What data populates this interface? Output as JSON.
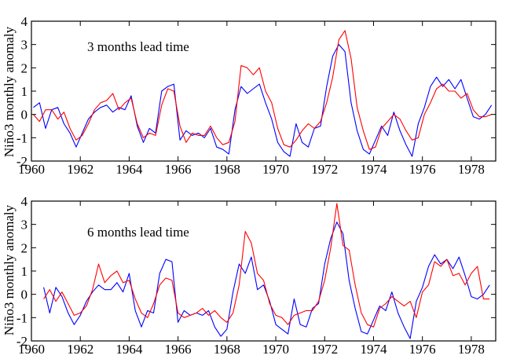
{
  "chart_data": [
    {
      "type": "line",
      "annotation": "3 months lead time",
      "ylabel": "Niño3 monthly anomaly",
      "xlim": [
        1960,
        1979
      ],
      "ylim": [
        -2,
        4
      ],
      "x_ticks": [
        1960,
        1962,
        1964,
        1966,
        1968,
        1970,
        1972,
        1974,
        1976,
        1978
      ],
      "y_ticks": [
        -2,
        -1,
        0,
        1,
        2,
        3,
        4
      ],
      "series": [
        {
          "color": "#0000ff",
          "x": [
            1960.08,
            1960.33,
            1960.58,
            1960.83,
            1961.08,
            1961.33,
            1961.58,
            1961.83,
            1962.08,
            1962.33,
            1962.58,
            1962.83,
            1963.08,
            1963.33,
            1963.58,
            1963.83,
            1964.08,
            1964.33,
            1964.58,
            1964.83,
            1965.08,
            1965.33,
            1965.58,
            1965.83,
            1966.08,
            1966.33,
            1966.58,
            1966.83,
            1967.08,
            1967.33,
            1967.58,
            1967.83,
            1968.08,
            1968.33,
            1968.58,
            1968.83,
            1969.08,
            1969.33,
            1969.58,
            1969.83,
            1970.08,
            1970.33,
            1970.58,
            1970.83,
            1971.08,
            1971.33,
            1971.58,
            1971.83,
            1972.08,
            1972.33,
            1972.58,
            1972.83,
            1973.08,
            1973.33,
            1973.58,
            1973.83,
            1974.08,
            1974.33,
            1974.58,
            1974.83,
            1975.08,
            1975.33,
            1975.58,
            1975.83,
            1976.08,
            1976.33,
            1976.58,
            1976.83,
            1977.08,
            1977.33,
            1977.58,
            1977.83,
            1978.08,
            1978.33,
            1978.58,
            1978.83
          ],
          "y": [
            0.3,
            0.5,
            -0.6,
            0.2,
            0.3,
            -0.4,
            -0.8,
            -1.4,
            -0.8,
            -0.2,
            0.1,
            0.3,
            0.4,
            0.1,
            0.3,
            0.2,
            0.8,
            -0.5,
            -1.2,
            -0.6,
            -0.8,
            1.0,
            1.2,
            1.3,
            -1.1,
            -0.7,
            -0.9,
            -0.8,
            -1.0,
            -0.6,
            -1.4,
            -1.5,
            -1.7,
            0.2,
            1.2,
            0.9,
            1.1,
            1.3,
            0.5,
            -0.2,
            -1.2,
            -1.6,
            -1.8,
            -0.4,
            -1.2,
            -1.4,
            -0.6,
            -0.5,
            1.2,
            2.5,
            3.0,
            2.7,
            0.5,
            -0.7,
            -1.5,
            -1.7,
            -1.1,
            -0.5,
            -0.9,
            0.1,
            -0.7,
            -1.3,
            -1.8,
            -0.4,
            0.3,
            1.2,
            1.6,
            1.2,
            1.5,
            1.1,
            1.5,
            0.7,
            -0.1,
            -0.2,
            0.0,
            0.4
          ]
        },
        {
          "color": "#ff0000",
          "x": [
            1960.08,
            1960.33,
            1960.58,
            1960.83,
            1961.08,
            1961.33,
            1961.58,
            1961.83,
            1962.08,
            1962.33,
            1962.58,
            1962.83,
            1963.08,
            1963.33,
            1963.58,
            1963.83,
            1964.08,
            1964.33,
            1964.58,
            1964.83,
            1965.08,
            1965.33,
            1965.58,
            1965.83,
            1966.08,
            1966.33,
            1966.58,
            1966.83,
            1967.08,
            1967.33,
            1967.58,
            1967.83,
            1968.08,
            1968.33,
            1968.58,
            1968.83,
            1969.08,
            1969.33,
            1969.58,
            1969.83,
            1970.08,
            1970.33,
            1970.58,
            1970.83,
            1971.08,
            1971.33,
            1971.58,
            1971.83,
            1972.08,
            1972.33,
            1972.58,
            1972.83,
            1973.08,
            1973.33,
            1973.58,
            1973.83,
            1974.08,
            1974.33,
            1974.58,
            1974.83,
            1975.08,
            1975.33,
            1975.58,
            1975.83,
            1976.08,
            1976.33,
            1976.58,
            1976.83,
            1977.08,
            1977.33,
            1977.58,
            1977.83,
            1978.08,
            1978.33,
            1978.58,
            1978.83
          ],
          "y": [
            0.0,
            -0.3,
            0.2,
            0.2,
            -0.2,
            0.1,
            -0.6,
            -1.1,
            -0.9,
            -0.4,
            0.2,
            0.5,
            0.6,
            0.9,
            0.2,
            0.5,
            0.7,
            -0.4,
            -1.0,
            -0.8,
            -0.9,
            0.4,
            1.1,
            1.0,
            -0.5,
            -1.2,
            -0.8,
            -0.9,
            -0.9,
            -0.5,
            -1.0,
            -1.3,
            -1.2,
            -0.3,
            2.1,
            2.0,
            1.7,
            2.0,
            1.0,
            0.5,
            -0.6,
            -1.3,
            -1.4,
            -1.1,
            -0.7,
            -0.4,
            -0.6,
            -0.3,
            0.5,
            1.6,
            3.2,
            3.6,
            2.4,
            0.3,
            -0.7,
            -1.5,
            -1.4,
            -0.6,
            -0.3,
            0.0,
            -0.2,
            -0.7,
            -1.1,
            -1.0,
            0.0,
            0.5,
            1.1,
            1.3,
            1.0,
            1.0,
            0.7,
            0.9,
            0.2,
            -0.1,
            -0.1,
            0.0
          ]
        }
      ]
    },
    {
      "type": "line",
      "annotation": "6 months lead time",
      "ylabel": "Niño3 monthly anomaly",
      "xlim": [
        1960,
        1979
      ],
      "ylim": [
        -2,
        4
      ],
      "x_ticks": [
        1960,
        1962,
        1964,
        1966,
        1968,
        1970,
        1972,
        1974,
        1976,
        1978
      ],
      "y_ticks": [
        -2,
        -1,
        0,
        1,
        2,
        3,
        4
      ],
      "series": [
        {
          "color": "#0000ff",
          "x": [
            1960.5,
            1960.75,
            1961.0,
            1961.25,
            1961.5,
            1961.75,
            1962.0,
            1962.25,
            1962.5,
            1962.75,
            1963.0,
            1963.25,
            1963.5,
            1963.75,
            1964.0,
            1964.25,
            1964.5,
            1964.75,
            1965.0,
            1965.25,
            1965.5,
            1965.75,
            1966.0,
            1966.25,
            1966.5,
            1966.75,
            1967.0,
            1967.25,
            1967.5,
            1967.75,
            1968.0,
            1968.25,
            1968.5,
            1968.75,
            1969.0,
            1969.25,
            1969.5,
            1969.75,
            1970.0,
            1970.25,
            1970.5,
            1970.75,
            1971.0,
            1971.25,
            1971.5,
            1971.75,
            1972.0,
            1972.25,
            1972.5,
            1972.75,
            1973.0,
            1973.25,
            1973.5,
            1973.75,
            1974.0,
            1974.25,
            1974.5,
            1974.75,
            1975.0,
            1975.25,
            1975.5,
            1975.75,
            1976.0,
            1976.25,
            1976.5,
            1976.75,
            1977.0,
            1977.25,
            1977.5,
            1977.75,
            1978.0,
            1978.25,
            1978.5,
            1978.75
          ],
          "y": [
            0.3,
            -0.8,
            0.3,
            -0.1,
            -0.8,
            -1.3,
            -0.9,
            -0.3,
            0.1,
            0.4,
            0.2,
            0.2,
            0.5,
            0.1,
            0.9,
            -0.7,
            -1.4,
            -0.7,
            -0.8,
            0.9,
            1.5,
            1.4,
            -1.2,
            -0.7,
            -0.9,
            -0.8,
            -0.9,
            -0.7,
            -1.4,
            -1.8,
            -1.5,
            0.1,
            1.3,
            0.9,
            1.6,
            0.2,
            0.4,
            -0.3,
            -1.3,
            -1.5,
            -1.7,
            -0.2,
            -1.3,
            -1.4,
            -0.6,
            -0.4,
            1.3,
            2.4,
            3.1,
            2.6,
            0.6,
            -0.6,
            -1.6,
            -1.7,
            -1.1,
            -0.5,
            -0.7,
            0.1,
            -0.8,
            -1.4,
            -1.9,
            -0.3,
            0.3,
            1.2,
            1.7,
            1.3,
            1.5,
            1.1,
            1.6,
            0.8,
            -0.1,
            -0.2,
            0.0,
            0.4
          ]
        },
        {
          "color": "#ff0000",
          "x": [
            1960.5,
            1960.75,
            1961.0,
            1961.25,
            1961.5,
            1961.75,
            1962.0,
            1962.25,
            1962.5,
            1962.75,
            1963.0,
            1963.25,
            1963.5,
            1963.75,
            1964.0,
            1964.25,
            1964.5,
            1964.75,
            1965.0,
            1965.25,
            1965.5,
            1965.75,
            1966.0,
            1966.25,
            1966.5,
            1966.75,
            1967.0,
            1967.25,
            1967.5,
            1967.75,
            1968.0,
            1968.25,
            1968.5,
            1968.75,
            1969.0,
            1969.25,
            1969.5,
            1969.75,
            1970.0,
            1970.25,
            1970.5,
            1970.75,
            1971.0,
            1971.25,
            1971.5,
            1971.75,
            1972.0,
            1972.25,
            1972.5,
            1972.75,
            1973.0,
            1973.25,
            1973.5,
            1973.75,
            1974.0,
            1974.25,
            1974.5,
            1974.75,
            1975.0,
            1975.25,
            1975.5,
            1975.75,
            1976.0,
            1976.25,
            1976.5,
            1976.75,
            1977.0,
            1977.25,
            1977.5,
            1977.75,
            1978.0,
            1978.25,
            1978.5,
            1978.75
          ],
          "y": [
            -0.2,
            0.2,
            -0.3,
            0.1,
            -0.4,
            -0.9,
            -0.8,
            -0.5,
            0.2,
            1.3,
            0.5,
            0.8,
            1.0,
            0.5,
            0.6,
            -0.2,
            -0.8,
            -1.0,
            -0.4,
            0.4,
            0.7,
            0.6,
            -0.8,
            -1.0,
            -0.9,
            -0.8,
            -0.6,
            -0.9,
            -0.7,
            -1.0,
            -1.2,
            -0.8,
            0.4,
            2.7,
            2.2,
            0.9,
            0.6,
            -0.4,
            -0.9,
            -1.0,
            -1.3,
            -0.9,
            -0.8,
            -0.7,
            -0.7,
            -0.3,
            0.6,
            2.0,
            3.9,
            2.1,
            1.9,
            0.4,
            -0.8,
            -1.3,
            -1.4,
            -0.6,
            -0.4,
            -0.1,
            -0.3,
            -0.5,
            -0.3,
            -1.0,
            0.1,
            0.4,
            1.4,
            1.2,
            1.5,
            0.8,
            0.9,
            0.4,
            0.9,
            1.2,
            -0.2,
            -0.2
          ]
        }
      ]
    }
  ]
}
